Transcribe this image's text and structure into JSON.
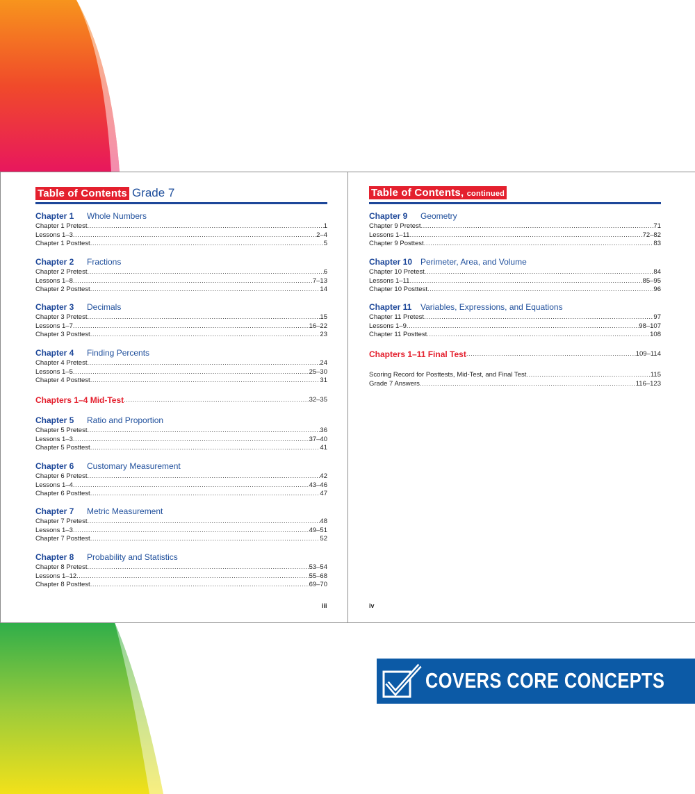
{
  "colors": {
    "accent_red": "#e4202e",
    "heading_blue": "#1d4799",
    "banner_blue": "#0c5aa6"
  },
  "left_page": {
    "title_box": "Table of Contents",
    "title_grade": "Grade 7",
    "folio": "iii",
    "chapters": [
      {
        "num": "Chapter 1",
        "name": "Whole Numbers",
        "rows": [
          {
            "label": "Chapter 1 Pretest",
            "page": "1"
          },
          {
            "label": "Lessons 1–3",
            "page": "2–4"
          },
          {
            "label": "Chapter 1 Posttest",
            "page": "5"
          }
        ]
      },
      {
        "num": "Chapter 2",
        "name": "Fractions",
        "rows": [
          {
            "label": "Chapter 2 Pretest",
            "page": "6"
          },
          {
            "label": "Lessons 1–8",
            "page": "7–13"
          },
          {
            "label": "Chapter 2 Posttest",
            "page": "14"
          }
        ]
      },
      {
        "num": "Chapter 3",
        "name": "Decimals",
        "rows": [
          {
            "label": "Chapter 3 Pretest",
            "page": "15"
          },
          {
            "label": "Lessons 1–7",
            "page": "16–22"
          },
          {
            "label": "Chapter 3 Posttest",
            "page": "23"
          }
        ]
      },
      {
        "num": "Chapter 4",
        "name": "Finding Percents",
        "rows": [
          {
            "label": "Chapter 4 Pretest",
            "page": "24"
          },
          {
            "label": "Lessons 1–5",
            "page": "25–30"
          },
          {
            "label": "Chapter 4 Posttest",
            "page": "31"
          }
        ]
      },
      {
        "num": "Chapter 5",
        "name": "Ratio and Proportion",
        "rows": [
          {
            "label": "Chapter 5 Pretest",
            "page": "36"
          },
          {
            "label": "Lessons 1–3",
            "page": "37–40"
          },
          {
            "label": "Chapter 5 Posttest",
            "page": "41"
          }
        ]
      },
      {
        "num": "Chapter 6",
        "name": "Customary Measurement",
        "rows": [
          {
            "label": "Chapter 6 Pretest",
            "page": "42"
          },
          {
            "label": "Lessons 1–4",
            "page": "43–46"
          },
          {
            "label": "Chapter 6 Posttest",
            "page": "47"
          }
        ]
      },
      {
        "num": "Chapter 7",
        "name": "Metric Measurement",
        "rows": [
          {
            "label": "Chapter 7 Pretest",
            "page": "48"
          },
          {
            "label": "Lessons 1–3",
            "page": "49–51"
          },
          {
            "label": "Chapter 7 Posttest",
            "page": "52"
          }
        ]
      },
      {
        "num": "Chapter 8",
        "name": "Probability and Statistics",
        "rows": [
          {
            "label": "Chapter 8 Pretest",
            "page": "53–54"
          },
          {
            "label": "Lessons 1–12",
            "page": "55–68"
          },
          {
            "label": "Chapter 8 Posttest",
            "page": "69–70"
          }
        ]
      }
    ],
    "mid_test": {
      "label": "Chapters 1–4 Mid-Test",
      "page": "32–35"
    }
  },
  "right_page": {
    "title_box": "Table of Contents,",
    "title_small": "continued",
    "folio": "iv",
    "chapters": [
      {
        "num": "Chapter 9",
        "name": "Geometry",
        "rows": [
          {
            "label": "Chapter 9 Pretest",
            "page": "71"
          },
          {
            "label": "Lessons 1–11",
            "page": "72–82"
          },
          {
            "label": "Chapter 9 Posttest",
            "page": "83"
          }
        ]
      },
      {
        "num": "Chapter 10",
        "name": "Perimeter, Area, and Volume",
        "rows": [
          {
            "label": "Chapter 10 Pretest",
            "page": "84"
          },
          {
            "label": "Lessons 1–11",
            "page": "85–95"
          },
          {
            "label": "Chapter 10 Posttest",
            "page": "96"
          }
        ]
      },
      {
        "num": "Chapter 11",
        "name": "Variables, Expressions, and Equations",
        "rows": [
          {
            "label": "Chapter 11 Pretest",
            "page": "97"
          },
          {
            "label": "Lessons 1–9",
            "page": "98–107"
          },
          {
            "label": "Chapter 11 Posttest",
            "page": "108"
          }
        ]
      }
    ],
    "final_test": {
      "label": "Chapters 1–11 Final Test",
      "page": "109–114"
    },
    "extras": [
      {
        "label": "Scoring Record for Posttests, Mid-Test, and Final Test",
        "page": "115"
      },
      {
        "label": "Grade 7 Answers",
        "page": "116–123"
      }
    ]
  },
  "banner": {
    "text": "COVERS CORE CONCEPTS",
    "icon": "checkbox-check-icon"
  }
}
